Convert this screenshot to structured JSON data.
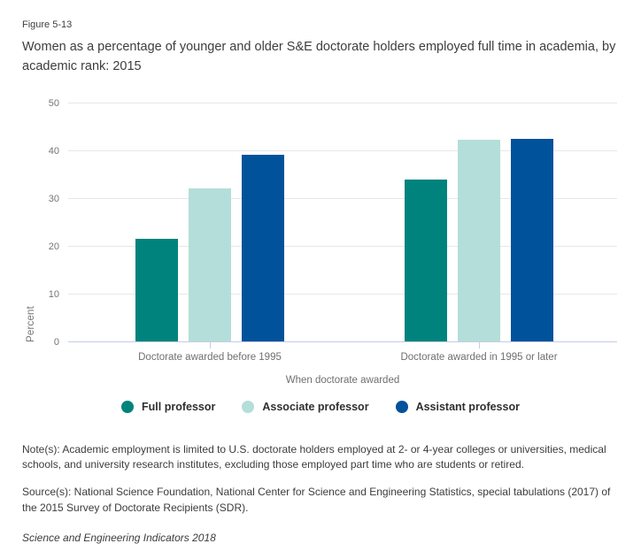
{
  "figure_label": "Figure 5-13",
  "title": "Women as a percentage of younger and older S&E doctorate holders employed full time in academia, by academic rank: 2015",
  "chart_data": {
    "type": "bar",
    "title": "Women as a percentage of younger and older S&E doctorate holders employed full time in academia, by academic rank: 2015",
    "categories": [
      "Doctorate awarded before 1995",
      "Doctorate awarded in 1995 or later"
    ],
    "series": [
      {
        "name": "Full professor",
        "color": "#00837d",
        "values": [
          21.6,
          34.0
        ]
      },
      {
        "name": "Associate professor",
        "color": "#b4ded9",
        "values": [
          32.1,
          42.3
        ]
      },
      {
        "name": "Assistant professor",
        "color": "#00529b",
        "values": [
          39.2,
          42.5
        ]
      }
    ],
    "xlabel": "When doctorate awarded",
    "ylabel": "Percent",
    "ylim": [
      0,
      50
    ],
    "yticks": [
      0,
      10,
      20,
      30,
      40,
      50
    ],
    "grid": true,
    "legend_position": "bottom",
    "colors": {
      "gridline": "#e7e7e7",
      "axis_line": "#c4cde6",
      "tick_text": "#757575"
    }
  },
  "notes": "Note(s): Academic employment is limited to U.S. doctorate holders employed at 2- or 4-year colleges or universities, medical schools, and university research institutes, excluding those employed part time who are students or retired.",
  "source": "Source(s): National Science Foundation, National Center for Science and Engineering Statistics, special tabulations (2017) of the 2015 Survey of Doctorate Recipients (SDR).",
  "publication": "Science and Engineering Indicators 2018"
}
